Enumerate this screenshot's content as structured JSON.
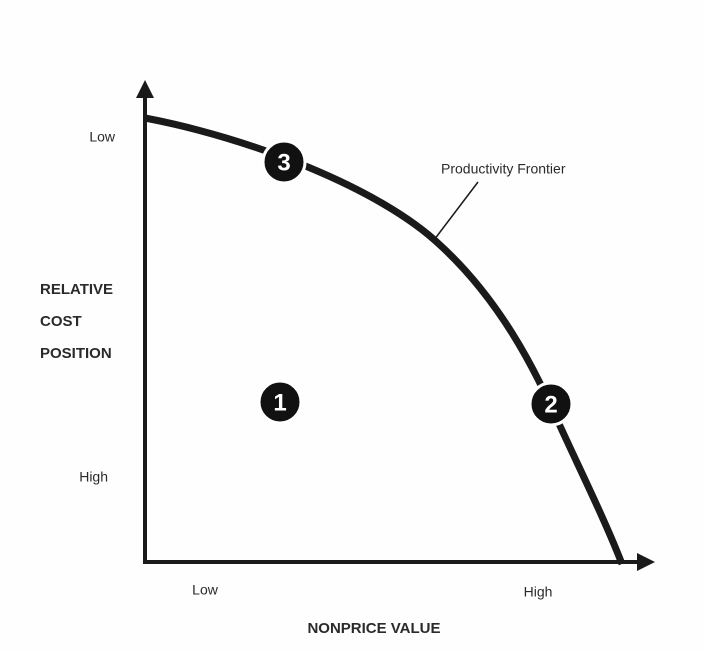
{
  "y_axis": {
    "label_lines": [
      "RELATIVE",
      "COST",
      "POSITION"
    ],
    "top_label": "Low",
    "bottom_label": "High"
  },
  "x_axis": {
    "label": "NONPRICE VALUE",
    "left_label": "Low",
    "right_label": "High"
  },
  "curve": {
    "label": "Productivity Frontier"
  },
  "markers": [
    {
      "label": "1"
    },
    {
      "label": "2"
    },
    {
      "label": "3"
    }
  ]
}
